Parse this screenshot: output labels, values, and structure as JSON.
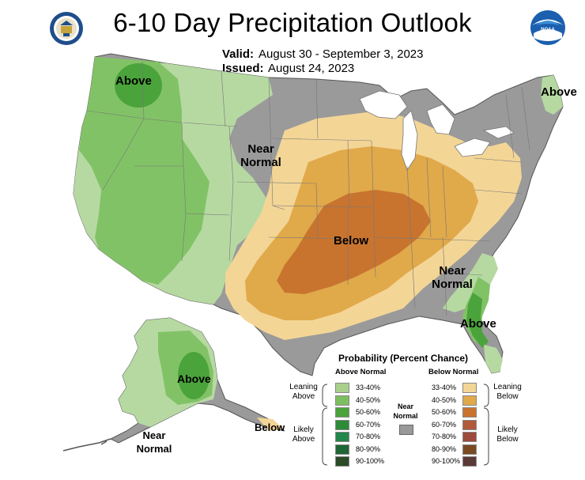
{
  "header": {
    "title": "6-10 Day Precipitation Outlook",
    "valid_label": "Valid:",
    "valid_value": "August 30 - September 3, 2023",
    "issued_label": "Issued:",
    "issued_value": "August 24, 2023"
  },
  "logos": {
    "left": "commerce-seal-icon",
    "right_text": "NOAA"
  },
  "map_labels": {
    "above_nw": "Above",
    "above_ne": "Above",
    "near_normal_plains_1": "Near",
    "near_normal_plains_2": "Normal",
    "below_central": "Below",
    "near_normal_se_1": "Near",
    "near_normal_se_2": "Normal",
    "above_fl": "Above",
    "above_ak": "Above",
    "near_normal_ak_1": "Near",
    "near_normal_ak_2": "Normal",
    "below_ak": "Below"
  },
  "legend": {
    "title": "Probability (Percent Chance)",
    "above_header": "Above Normal",
    "below_header": "Below Normal",
    "near_label_1": "Near",
    "near_label_2": "Normal",
    "leaning_above_1": "Leaning",
    "leaning_above_2": "Above",
    "likely_above_1": "Likely",
    "likely_above_2": "Above",
    "leaning_below_1": "Leaning",
    "leaning_below_2": "Below",
    "likely_below_1": "Likely",
    "likely_below_2": "Below",
    "above_items": [
      {
        "label": "33-40%",
        "color": "#a8d08d"
      },
      {
        "label": "40-50%",
        "color": "#7dbf5f"
      },
      {
        "label": "50-60%",
        "color": "#4aa33b"
      },
      {
        "label": "60-70%",
        "color": "#2e8b3a"
      },
      {
        "label": "70-80%",
        "color": "#23864a"
      },
      {
        "label": "80-90%",
        "color": "#1e6636"
      },
      {
        "label": "90-100%",
        "color": "#2a4a28"
      }
    ],
    "below_items": [
      {
        "label": "33-40%",
        "color": "#f3d596"
      },
      {
        "label": "40-50%",
        "color": "#e0a94a"
      },
      {
        "label": "50-60%",
        "color": "#c8742f"
      },
      {
        "label": "60-70%",
        "color": "#b05a3a"
      },
      {
        "label": "70-80%",
        "color": "#9e4a3c"
      },
      {
        "label": "80-90%",
        "color": "#7a4a23"
      },
      {
        "label": "90-100%",
        "color": "#5a3a36"
      }
    ],
    "near_color": "#999999"
  }
}
